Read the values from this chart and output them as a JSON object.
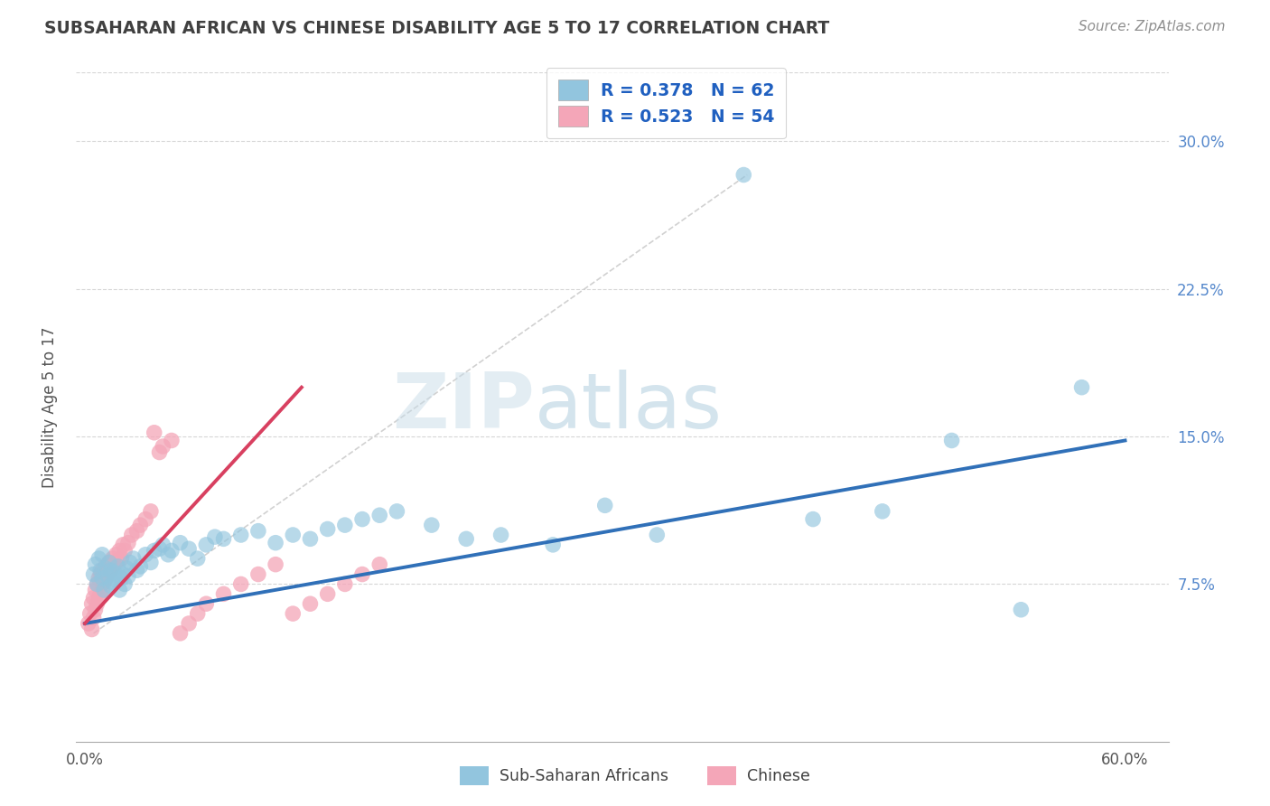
{
  "title": "SUBSAHARAN AFRICAN VS CHINESE DISABILITY AGE 5 TO 17 CORRELATION CHART",
  "source": "Source: ZipAtlas.com",
  "ylabel": "Disability Age 5 to 17",
  "xlim": [
    -0.005,
    0.625
  ],
  "ylim": [
    -0.005,
    0.335
  ],
  "xtick_positions": [
    0.0,
    0.1,
    0.2,
    0.3,
    0.4,
    0.5,
    0.6
  ],
  "xtick_labels": [
    "0.0%",
    "",
    "",
    "",
    "",
    "",
    "60.0%"
  ],
  "ytick_positions": [
    0.0,
    0.075,
    0.15,
    0.225,
    0.3
  ],
  "ytick_labels_right": [
    "",
    "7.5%",
    "15.0%",
    "22.5%",
    "30.0%"
  ],
  "legend_r1": "R = 0.378",
  "legend_n1": "N = 62",
  "legend_r2": "R = 0.523",
  "legend_n2": "N = 54",
  "color_blue": "#92c5de",
  "color_blue_edge": "#92c5de",
  "color_pink": "#f4a6b8",
  "color_pink_edge": "#f4a6b8",
  "color_blue_line": "#3070b8",
  "color_pink_line": "#d84060",
  "color_dashed_line": "#cccccc",
  "watermark_color": "#d8e8f0",
  "background_color": "#ffffff",
  "grid_color": "#cccccc",
  "title_color": "#404040",
  "source_color": "#909090",
  "legend_text_color": "#2060c0",
  "blue_scatter_x": [
    0.005,
    0.006,
    0.007,
    0.008,
    0.009,
    0.01,
    0.01,
    0.011,
    0.012,
    0.013,
    0.014,
    0.015,
    0.015,
    0.016,
    0.017,
    0.018,
    0.019,
    0.02,
    0.021,
    0.022,
    0.023,
    0.024,
    0.025,
    0.026,
    0.028,
    0.03,
    0.032,
    0.035,
    0.038,
    0.04,
    0.043,
    0.045,
    0.048,
    0.05,
    0.055,
    0.06,
    0.065,
    0.07,
    0.075,
    0.08,
    0.09,
    0.1,
    0.11,
    0.12,
    0.13,
    0.14,
    0.15,
    0.16,
    0.17,
    0.18,
    0.2,
    0.22,
    0.24,
    0.27,
    0.3,
    0.33,
    0.38,
    0.42,
    0.46,
    0.5,
    0.54,
    0.575
  ],
  "blue_scatter_y": [
    0.08,
    0.085,
    0.075,
    0.088,
    0.082,
    0.078,
    0.09,
    0.072,
    0.083,
    0.079,
    0.086,
    0.074,
    0.082,
    0.076,
    0.081,
    0.077,
    0.084,
    0.072,
    0.078,
    0.08,
    0.075,
    0.083,
    0.079,
    0.086,
    0.088,
    0.082,
    0.084,
    0.09,
    0.086,
    0.092,
    0.093,
    0.095,
    0.09,
    0.092,
    0.096,
    0.093,
    0.088,
    0.095,
    0.099,
    0.098,
    0.1,
    0.102,
    0.096,
    0.1,
    0.098,
    0.103,
    0.105,
    0.108,
    0.11,
    0.112,
    0.105,
    0.098,
    0.1,
    0.095,
    0.115,
    0.1,
    0.283,
    0.108,
    0.112,
    0.148,
    0.062,
    0.175
  ],
  "pink_scatter_x": [
    0.002,
    0.003,
    0.004,
    0.004,
    0.005,
    0.005,
    0.006,
    0.006,
    0.007,
    0.007,
    0.008,
    0.008,
    0.009,
    0.009,
    0.01,
    0.01,
    0.011,
    0.012,
    0.012,
    0.013,
    0.014,
    0.015,
    0.016,
    0.017,
    0.018,
    0.019,
    0.02,
    0.021,
    0.022,
    0.023,
    0.025,
    0.027,
    0.03,
    0.032,
    0.035,
    0.038,
    0.04,
    0.043,
    0.045,
    0.05,
    0.055,
    0.06,
    0.065,
    0.07,
    0.08,
    0.09,
    0.1,
    0.11,
    0.12,
    0.13,
    0.14,
    0.15,
    0.16,
    0.17
  ],
  "pink_scatter_y": [
    0.055,
    0.06,
    0.052,
    0.065,
    0.058,
    0.068,
    0.062,
    0.072,
    0.065,
    0.075,
    0.068,
    0.078,
    0.07,
    0.08,
    0.072,
    0.082,
    0.076,
    0.078,
    0.084,
    0.08,
    0.086,
    0.082,
    0.088,
    0.085,
    0.09,
    0.087,
    0.092,
    0.088,
    0.095,
    0.092,
    0.096,
    0.1,
    0.102,
    0.105,
    0.108,
    0.112,
    0.152,
    0.142,
    0.145,
    0.148,
    0.05,
    0.055,
    0.06,
    0.065,
    0.07,
    0.075,
    0.08,
    0.085,
    0.06,
    0.065,
    0.07,
    0.075,
    0.08,
    0.085
  ],
  "blue_line_x": [
    0.0,
    0.6
  ],
  "blue_line_y": [
    0.055,
    0.148
  ],
  "pink_line_x": [
    0.0,
    0.125
  ],
  "pink_line_y": [
    0.055,
    0.175
  ]
}
